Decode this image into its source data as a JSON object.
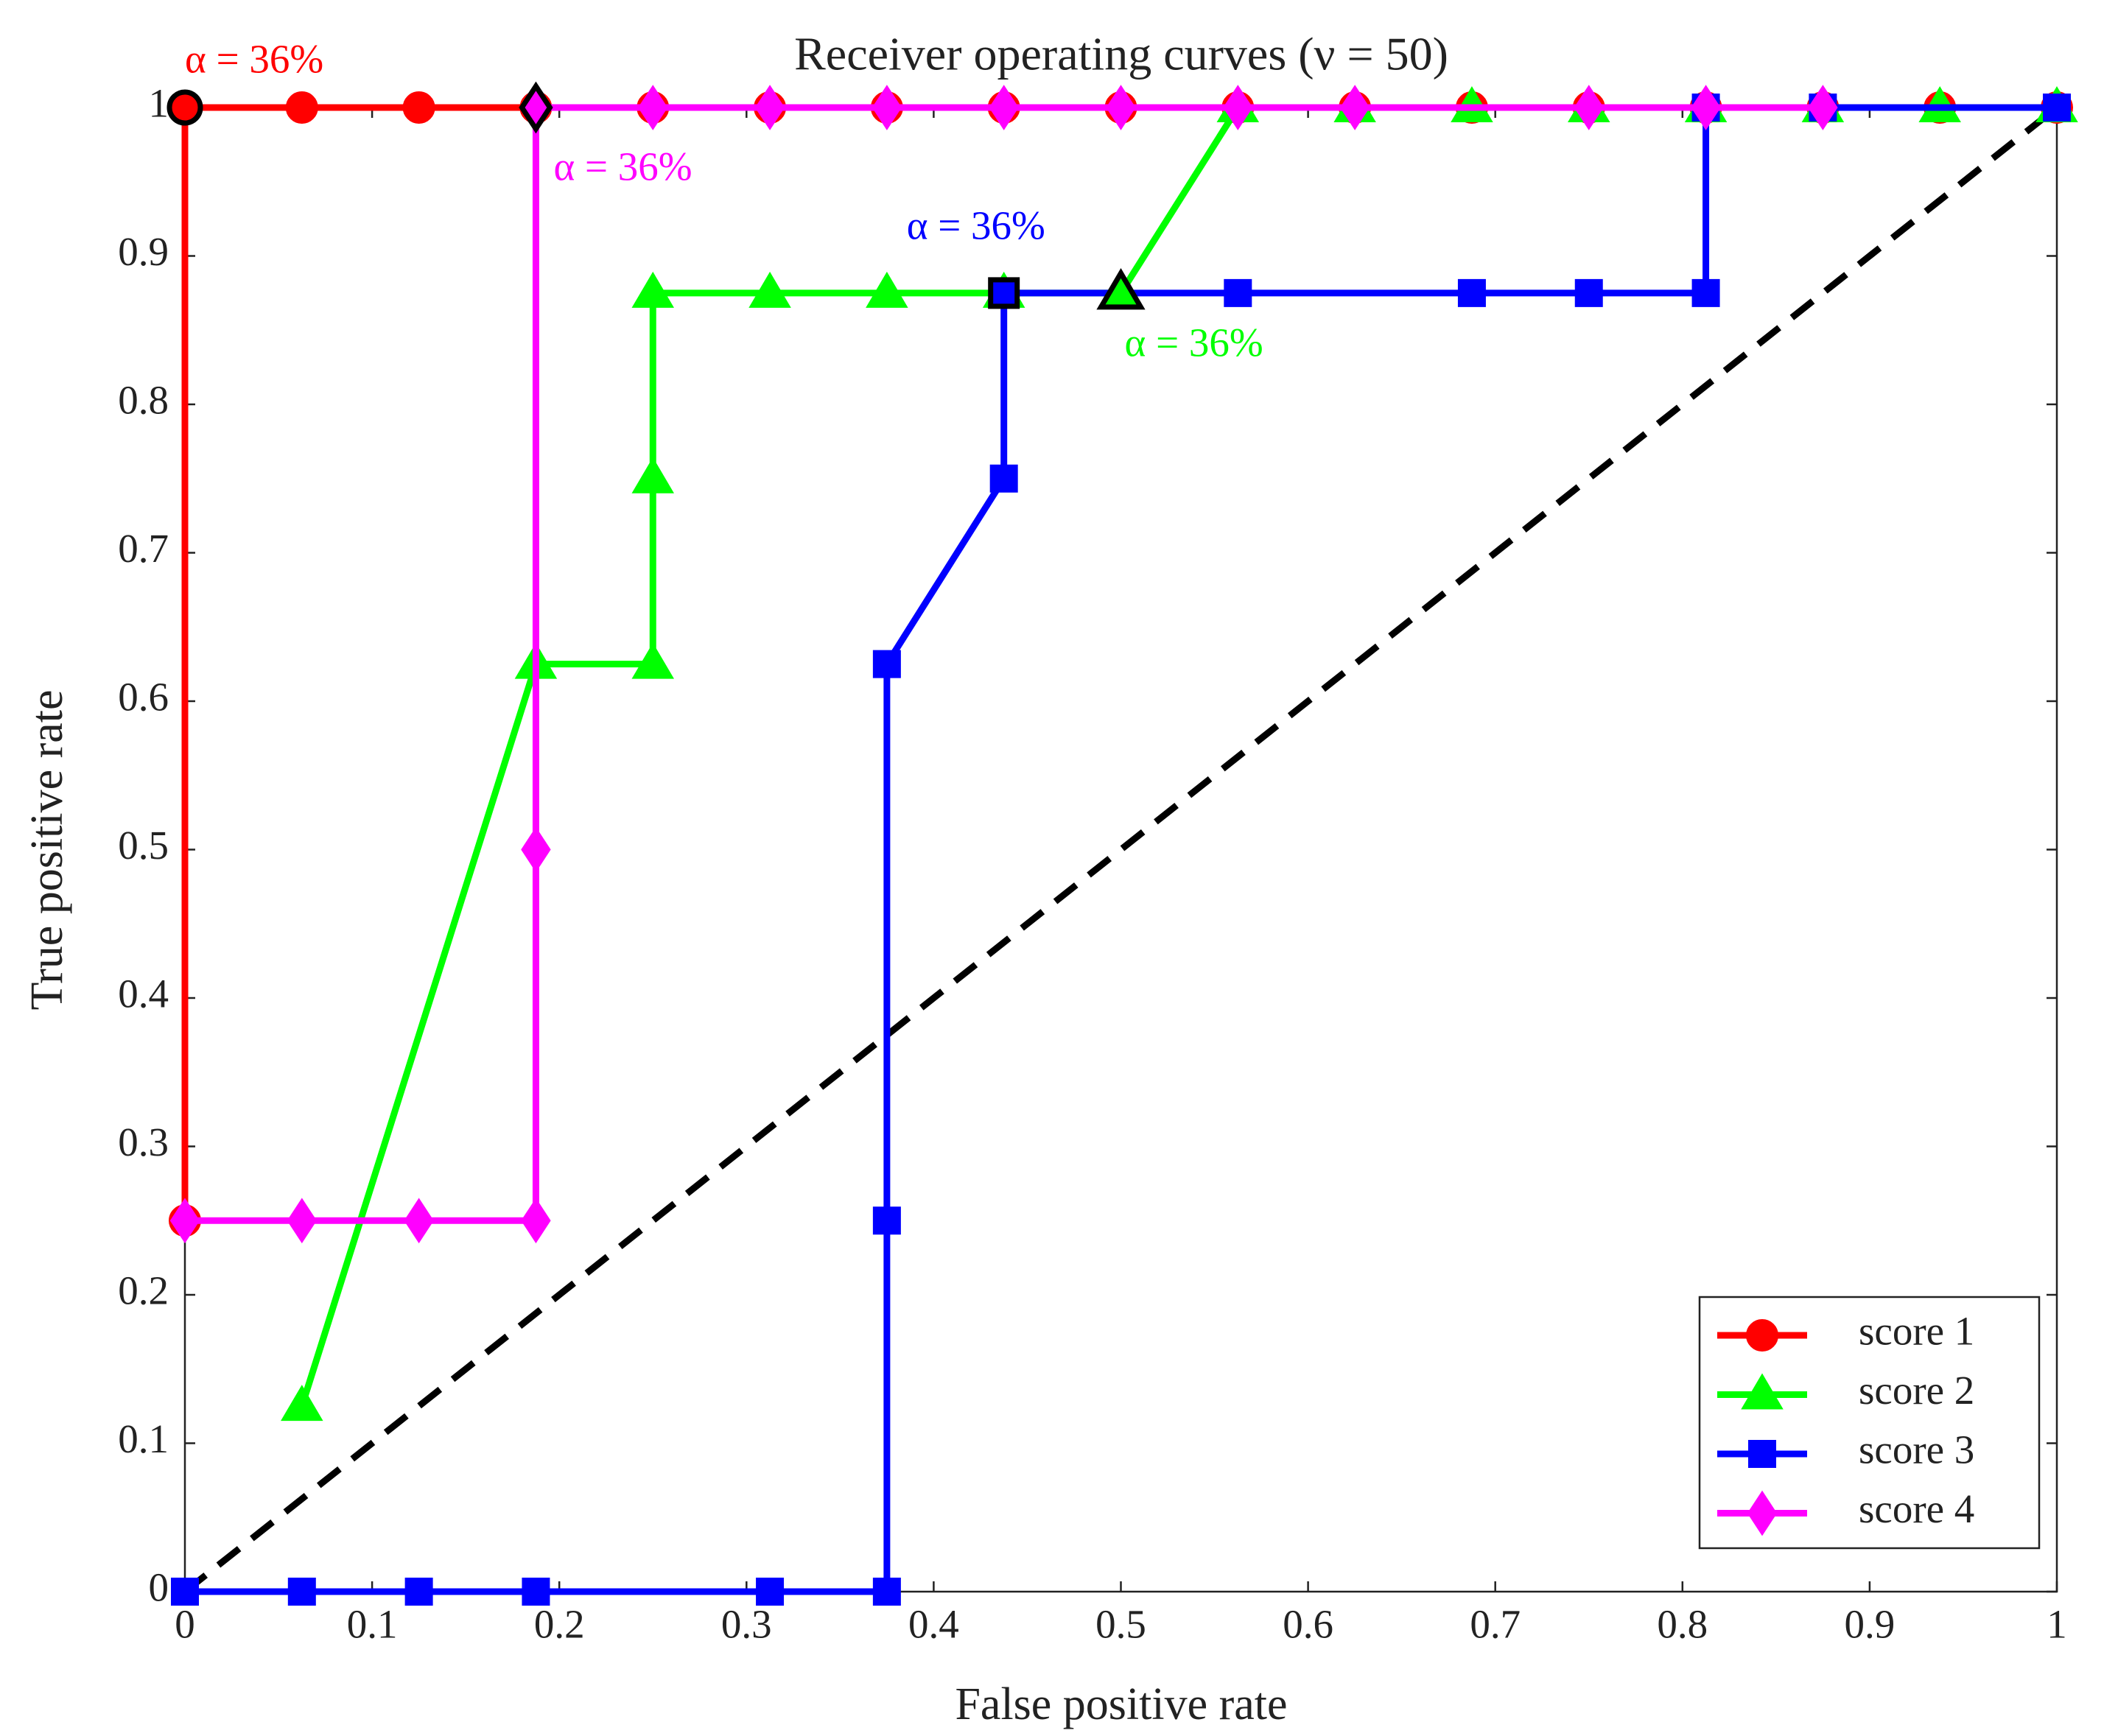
{
  "chart_data": {
    "type": "line",
    "title": "Receiver operating curves (ν = 50)",
    "x_label": "False positive rate",
    "y_label": "True positive rate",
    "xlim": [
      0,
      1
    ],
    "ylim": [
      0,
      1
    ],
    "xticks": [
      0,
      0.1,
      0.2,
      0.3,
      0.4,
      0.5,
      0.6,
      0.7,
      0.8,
      0.9,
      1
    ],
    "yticks": [
      0,
      0.1,
      0.2,
      0.3,
      0.4,
      0.5,
      0.6,
      0.7,
      0.8,
      0.9,
      1
    ],
    "legend": "lower right",
    "series": [
      {
        "name": "score 1",
        "color": "#ff0000",
        "marker": "circle",
        "x": [
          0,
          0,
          0.0625,
          0.125,
          0.1875,
          0.25,
          0.3125,
          0.375,
          0.4375,
          0.5,
          0.5625,
          0.625,
          0.6875,
          0.75,
          0.8125,
          0.875,
          0.9375,
          1
        ],
        "values": [
          0.25,
          1,
          1,
          1,
          1,
          1,
          1,
          1,
          1,
          1,
          1,
          1,
          1,
          1,
          1,
          1,
          1,
          1
        ]
      },
      {
        "name": "score 2",
        "color": "#00ff00",
        "marker": "triangle",
        "x": [
          0.0625,
          0.1875,
          0.25,
          0.25,
          0.25,
          0.3125,
          0.375,
          0.4375,
          0.5,
          0.5625,
          0.625,
          0.6875,
          0.75,
          0.8125,
          0.875,
          0.9375,
          1
        ],
        "values": [
          0.125,
          0.625,
          0.625,
          0.75,
          0.875,
          0.875,
          0.875,
          0.875,
          0.875,
          1,
          1,
          1,
          1,
          1,
          1,
          1,
          1
        ]
      },
      {
        "name": "score 3",
        "color": "#0000ff",
        "marker": "square",
        "x": [
          0,
          0.0625,
          0.125,
          0.1875,
          0.3125,
          0.375,
          0.375,
          0.375,
          0.4375,
          0.4375,
          0.5625,
          0.6875,
          0.75,
          0.8125,
          0.8125,
          0.875,
          1
        ],
        "values": [
          0,
          0,
          0,
          0,
          0,
          0,
          0.25,
          0.625,
          0.75,
          0.875,
          0.875,
          0.875,
          0.875,
          0.875,
          1,
          1,
          1
        ]
      },
      {
        "name": "score 4",
        "color": "#ff00ff",
        "marker": "diamond",
        "x": [
          0,
          0.0625,
          0.125,
          0.1875,
          0.1875,
          0.1875,
          0.25,
          0.3125,
          0.375,
          0.4375,
          0.5,
          0.5625,
          0.625,
          0.75,
          0.8125,
          0.875
        ],
        "values": [
          0.25,
          0.25,
          0.25,
          0.25,
          0.5,
          1,
          1,
          1,
          1,
          1,
          1,
          1,
          1,
          1,
          1,
          1
        ]
      }
    ],
    "reference_line": {
      "color": "#000000",
      "x": [
        0,
        1
      ],
      "values": [
        0,
        1
      ]
    },
    "annotations": [
      {
        "text": "α = 36%",
        "color": "#ff0000",
        "marker": "circle",
        "x": 0,
        "y": 1
      },
      {
        "text": "α = 36%",
        "color": "#ff00ff",
        "marker": "diamond",
        "x": 0.1875,
        "y": 1
      },
      {
        "text": "α = 36%",
        "color": "#0000ff",
        "marker": "square",
        "x": 0.4375,
        "y": 0.875
      },
      {
        "text": "α = 36%",
        "color": "#00ff00",
        "marker": "triangle",
        "x": 0.5,
        "y": 0.875
      }
    ]
  }
}
